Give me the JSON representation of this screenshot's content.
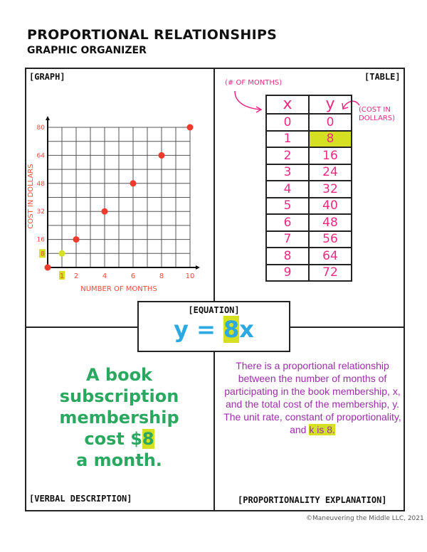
{
  "header": {
    "title": "PROPORTIONAL RELATIONSHIPS",
    "subtitle": "GRAPHIC ORGANIZER"
  },
  "graph": {
    "label": "[GRAPH]"
  },
  "chart_data": {
    "type": "scatter",
    "xlabel": "NUMBER OF MONTHS",
    "ylabel": "COST IN DOLLARS",
    "xlim": [
      0,
      10
    ],
    "ylim": [
      0,
      80
    ],
    "grid": true,
    "x_ticks": [
      "1",
      "2",
      "4",
      "6",
      "8",
      "10"
    ],
    "y_ticks": [
      "8",
      "16",
      "32",
      "48",
      "64",
      "80"
    ],
    "points": [
      {
        "x": 0,
        "y": 0
      },
      {
        "x": 1,
        "y": 8,
        "highlight": true
      },
      {
        "x": 2,
        "y": 16
      },
      {
        "x": 4,
        "y": 32
      },
      {
        "x": 6,
        "y": 48
      },
      {
        "x": 8,
        "y": 64
      },
      {
        "x": 10,
        "y": 80
      }
    ],
    "colors": {
      "point": "#f03a2e",
      "highlight": "#d4e021",
      "labels": "#f04a3a"
    }
  },
  "table": {
    "label": "[TABLE]",
    "x_note": "(# OF MONTHS)",
    "y_note_1": "(COST IN",
    "y_note_2": "DOLLARS)",
    "headers": [
      "x",
      "y"
    ],
    "rows": [
      [
        "0",
        "0"
      ],
      [
        "1",
        "8"
      ],
      [
        "2",
        "16"
      ],
      [
        "3",
        "24"
      ],
      [
        "4",
        "32"
      ],
      [
        "5",
        "40"
      ],
      [
        "6",
        "48"
      ],
      [
        "7",
        "56"
      ],
      [
        "8",
        "64"
      ],
      [
        "9",
        "72"
      ]
    ]
  },
  "equation": {
    "label": "[EQUATION]",
    "y": "y =",
    "k": "8",
    "x": "x"
  },
  "verbal": {
    "label": "[VERBAL DESCRIPTION]",
    "l1": "A book",
    "l2": "subscription",
    "l3": "membership",
    "l4": "cost $",
    "k": "8",
    "l5": "a month."
  },
  "explanation": {
    "label": "[PROPORTIONALITY EXPLANATION]",
    "text": "There is a proportional relationship between the number of months of participating in the book membership, x, and the total cost of the membership, y. The unit rate, constant of proportionality, and ",
    "hl": "k is 8."
  },
  "footer": {
    "copyright": "©Maneuvering the Middle LLC, 2021"
  }
}
